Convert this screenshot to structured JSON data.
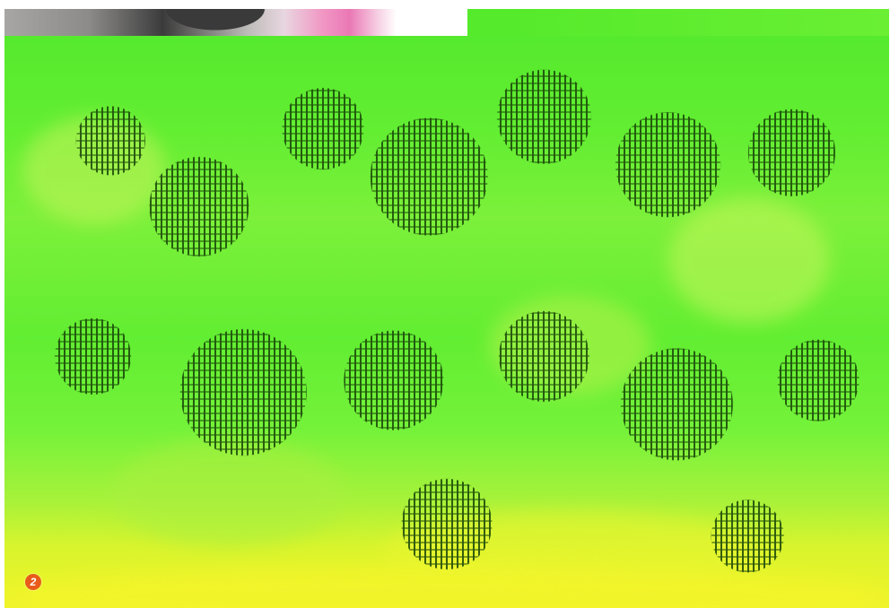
{
  "image": {
    "badge": {
      "label": "2",
      "color": "#e95b1a"
    },
    "palette": {
      "dominant": "#62ee32",
      "bottom_tint": "#f0f42a",
      "pattern": "#194608"
    }
  }
}
